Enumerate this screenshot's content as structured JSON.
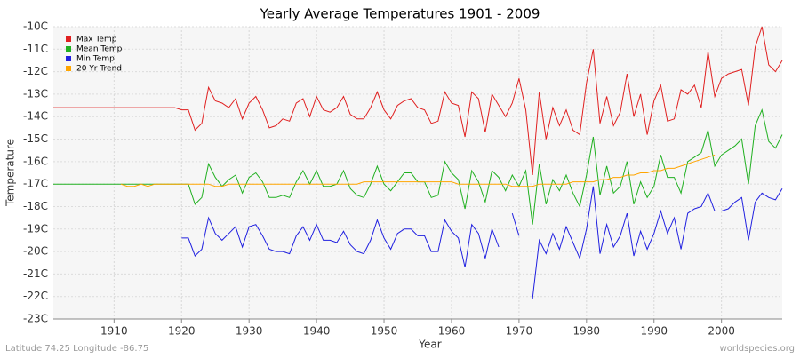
{
  "chart_data": {
    "type": "line",
    "title": "Yearly Average Temperatures 1901 - 2009",
    "x_label": "Year",
    "y_label": "Temperature",
    "footer_left": "Latitude 74.25 Longitude -86.75",
    "footer_right": "worldspecies.org",
    "legend": "top-left",
    "grid": true,
    "x": [
      1901,
      1902,
      1903,
      1904,
      1905,
      1906,
      1907,
      1908,
      1909,
      1910,
      1911,
      1912,
      1913,
      1914,
      1915,
      1916,
      1917,
      1918,
      1919,
      1920,
      1921,
      1922,
      1923,
      1924,
      1925,
      1926,
      1927,
      1928,
      1929,
      1930,
      1931,
      1932,
      1933,
      1934,
      1935,
      1936,
      1937,
      1938,
      1939,
      1940,
      1941,
      1942,
      1943,
      1944,
      1945,
      1946,
      1947,
      1948,
      1949,
      1950,
      1951,
      1952,
      1953,
      1954,
      1955,
      1956,
      1957,
      1958,
      1959,
      1960,
      1961,
      1962,
      1963,
      1964,
      1965,
      1966,
      1967,
      1968,
      1969,
      1970,
      1971,
      1972,
      1973,
      1974,
      1975,
      1976,
      1977,
      1978,
      1979,
      1980,
      1981,
      1982,
      1983,
      1984,
      1985,
      1986,
      1987,
      1988,
      1989,
      1990,
      1991,
      1992,
      1993,
      1994,
      1995,
      1996,
      1997,
      1998,
      1999,
      2000,
      2001,
      2002,
      2003,
      2004,
      2005,
      2006,
      2007,
      2008,
      2009
    ],
    "xlim": [
      1901,
      2009
    ],
    "xticks": [
      1910,
      1920,
      1930,
      1940,
      1950,
      1960,
      1970,
      1980,
      1990,
      2000
    ],
    "ylim": [
      -23,
      -10
    ],
    "yticks": [
      {
        "value": -10,
        "label": "-10C"
      },
      {
        "value": -11,
        "label": "-11C"
      },
      {
        "value": -12,
        "label": "-12C"
      },
      {
        "value": -13,
        "label": "-13C"
      },
      {
        "value": -14,
        "label": "-14C"
      },
      {
        "value": -15,
        "label": "-15C"
      },
      {
        "value": -16,
        "label": "-16C"
      },
      {
        "value": -17,
        "label": "-17C"
      },
      {
        "value": -18,
        "label": "-18C"
      },
      {
        "value": -19,
        "label": "-19C"
      },
      {
        "value": -20,
        "label": "-20C"
      },
      {
        "value": -21,
        "label": "-21C"
      },
      {
        "value": -22,
        "label": "-22C"
      },
      {
        "value": -23,
        "label": "-23C"
      }
    ],
    "series": [
      {
        "name": "Max Temp",
        "color": "#e02020",
        "values": [
          -13.6,
          -13.6,
          -13.6,
          -13.6,
          -13.6,
          -13.6,
          -13.6,
          -13.6,
          -13.6,
          -13.6,
          -13.6,
          -13.6,
          -13.6,
          -13.6,
          -13.6,
          -13.6,
          -13.6,
          -13.6,
          -13.6,
          -13.7,
          -13.7,
          -14.6,
          -14.3,
          -12.7,
          -13.3,
          -13.4,
          -13.6,
          -13.2,
          -14.1,
          -13.4,
          -13.1,
          -13.7,
          -14.5,
          -14.4,
          -14.1,
          -14.2,
          -13.4,
          -13.2,
          -14.0,
          -13.1,
          -13.7,
          -13.8,
          -13.6,
          -13.1,
          -13.9,
          -14.1,
          -14.1,
          -13.6,
          -12.9,
          -13.7,
          -14.1,
          -13.5,
          -13.3,
          -13.2,
          -13.6,
          -13.7,
          -14.3,
          -14.2,
          -12.9,
          -13.4,
          -13.5,
          -14.9,
          -12.9,
          -13.2,
          -14.7,
          -13.0,
          -13.5,
          -14.0,
          -13.4,
          -12.3,
          -13.7,
          -16.6,
          -12.9,
          -15.0,
          -13.6,
          -14.4,
          -13.7,
          -14.6,
          -14.8,
          -12.5,
          -11.0,
          -14.3,
          -13.1,
          -14.4,
          -13.8,
          -12.1,
          -14.0,
          -13.0,
          -14.8,
          -13.3,
          -12.6,
          -14.2,
          -14.1,
          -12.8,
          -13.0,
          -12.6,
          -13.6,
          -11.1,
          -13.1,
          -12.3,
          -12.1,
          -12.0,
          -11.9,
          -13.5,
          -10.9,
          -10.0,
          -11.7,
          -12.0,
          -11.5
        ]
      },
      {
        "name": "Mean Temp",
        "color": "#20b020",
        "values": [
          -17.0,
          -17.0,
          -17.0,
          -17.0,
          -17.0,
          -17.0,
          -17.0,
          -17.0,
          -17.0,
          -17.0,
          -17.0,
          -17.0,
          -17.0,
          -17.0,
          -17.0,
          -17.0,
          -17.0,
          -17.0,
          -17.0,
          -17.0,
          -17.0,
          -17.9,
          -17.6,
          -16.1,
          -16.7,
          -17.1,
          -16.8,
          -16.6,
          -17.4,
          -16.7,
          -16.5,
          -16.9,
          -17.6,
          -17.6,
          -17.5,
          -17.6,
          -16.9,
          -16.4,
          -17.0,
          -16.4,
          -17.1,
          -17.1,
          -17.0,
          -16.4,
          -17.2,
          -17.5,
          -17.6,
          -17.0,
          -16.2,
          -17.0,
          -17.3,
          -16.9,
          -16.5,
          -16.5,
          -16.9,
          -16.9,
          -17.6,
          -17.5,
          -16.0,
          -16.5,
          -16.8,
          -18.1,
          -16.4,
          -16.9,
          -17.8,
          -16.4,
          -16.7,
          -17.3,
          -16.6,
          -17.1,
          -16.4,
          -18.8,
          -16.1,
          -17.9,
          -16.8,
          -17.3,
          -16.6,
          -17.4,
          -18.0,
          -16.6,
          -14.9,
          -17.5,
          -16.2,
          -17.4,
          -17.1,
          -16.0,
          -17.9,
          -16.9,
          -17.6,
          -17.1,
          -15.7,
          -16.7,
          -16.7,
          -17.4,
          -16.0,
          -15.8,
          -15.6,
          -14.6,
          -16.2,
          -15.7,
          -15.5,
          -15.3,
          -15.0,
          -17.0,
          -14.4,
          -13.7,
          -15.1,
          -15.4,
          -14.8
        ]
      },
      {
        "name": "Min Temp",
        "color": "#2020e0",
        "values": [
          null,
          null,
          null,
          null,
          null,
          null,
          null,
          null,
          null,
          null,
          null,
          null,
          null,
          null,
          null,
          null,
          null,
          null,
          null,
          -19.4,
          -19.4,
          -20.2,
          -19.9,
          -18.5,
          -19.2,
          -19.5,
          -19.2,
          -18.9,
          -19.8,
          -18.9,
          -18.8,
          -19.3,
          -19.9,
          -20.0,
          -20.0,
          -20.1,
          -19.3,
          -18.9,
          -19.5,
          -18.8,
          -19.5,
          -19.5,
          -19.6,
          -19.1,
          -19.7,
          -20.0,
          -20.1,
          -19.5,
          -18.6,
          -19.4,
          -19.9,
          -19.2,
          -19.0,
          -19.0,
          -19.3,
          -19.3,
          -20.0,
          -20.0,
          -18.6,
          -19.1,
          -19.4,
          -20.7,
          -18.8,
          -19.2,
          -20.3,
          -19.0,
          -19.8,
          null,
          -18.3,
          -19.3,
          null,
          -22.1,
          -19.5,
          -20.1,
          -19.2,
          -19.9,
          -18.9,
          -19.6,
          -20.3,
          -19.0,
          -17.1,
          -20.1,
          -18.8,
          -19.8,
          -19.3,
          -18.3,
          -20.2,
          -19.1,
          -19.9,
          -19.2,
          -18.2,
          -19.2,
          -18.5,
          -19.9,
          -18.3,
          -18.1,
          -18.0,
          -17.4,
          -18.2,
          -18.2,
          -18.1,
          -17.8,
          -17.6,
          -19.5,
          -17.8,
          -17.4,
          -17.6,
          -17.7,
          -17.2
        ]
      },
      {
        "name": "20 Yr Trend",
        "color": "#ffa500",
        "values": [
          null,
          null,
          null,
          null,
          null,
          null,
          null,
          null,
          null,
          null,
          -17.0,
          -17.1,
          -17.1,
          -17.0,
          -17.1,
          -17.0,
          -17.0,
          -17.0,
          -17.0,
          -17.0,
          -17.0,
          -17.0,
          -17.0,
          -17.0,
          -17.1,
          -17.1,
          -17.0,
          -17.0,
          -17.0,
          -17.0,
          -17.0,
          -17.0,
          -17.0,
          -17.0,
          -17.0,
          -17.0,
          -17.0,
          -17.0,
          -17.0,
          -17.0,
          -17.0,
          -17.0,
          -17.0,
          -17.0,
          -17.0,
          -17.0,
          -16.9,
          -16.9,
          -16.9,
          -16.9,
          -16.9,
          -16.9,
          -16.9,
          -16.9,
          -16.9,
          -16.9,
          -16.9,
          -16.9,
          -16.9,
          -16.9,
          -17.0,
          -17.0,
          -17.0,
          -17.0,
          -17.0,
          -17.0,
          -17.0,
          -17.0,
          -17.1,
          -17.1,
          -17.1,
          -17.1,
          -17.0,
          -17.0,
          -17.0,
          -17.0,
          -17.0,
          -16.9,
          -16.9,
          -16.9,
          -16.9,
          -16.8,
          -16.8,
          -16.7,
          -16.7,
          -16.6,
          -16.6,
          -16.5,
          -16.5,
          -16.4,
          -16.4,
          -16.3,
          -16.3,
          -16.2,
          -16.1,
          -16.0,
          -15.9,
          -15.8,
          -15.7,
          null,
          null,
          null,
          null,
          null,
          null,
          null,
          null,
          null,
          null
        ]
      }
    ]
  }
}
